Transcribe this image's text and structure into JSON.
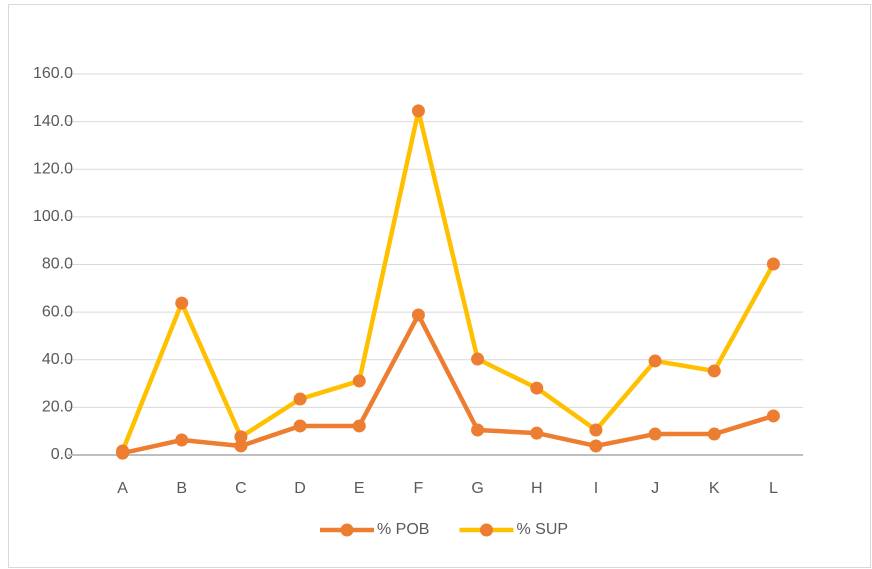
{
  "chart_data": {
    "type": "line",
    "categories": [
      "A",
      "B",
      "C",
      "D",
      "E",
      "F",
      "G",
      "H",
      "I",
      "J",
      "K",
      "L"
    ],
    "series": [
      {
        "name": "% POB",
        "color": "#ED7D31",
        "marker_color": "#ED7D31",
        "values": [
          0.8,
          6.3,
          3.8,
          12.2,
          12.2,
          58.8,
          10.5,
          9.2,
          3.8,
          8.8,
          8.8,
          16.4
        ]
      },
      {
        "name": "% SUP",
        "color": "#FFC000",
        "marker_color": "#ED7D31",
        "values": [
          1.7,
          63.8,
          7.6,
          23.5,
          31.1,
          144.5,
          40.3,
          28.1,
          10.5,
          39.5,
          35.3,
          80.2
        ]
      }
    ],
    "ylim": [
      0,
      160
    ],
    "yticks": [
      {
        "value": 0,
        "label": "0.0"
      },
      {
        "value": 20,
        "label": "20.0"
      },
      {
        "value": 40,
        "label": "40.0"
      },
      {
        "value": 60,
        "label": "60.0"
      },
      {
        "value": 80,
        "label": "80.0"
      },
      {
        "value": 100,
        "label": "100.0"
      },
      {
        "value": 120,
        "label": "120.0"
      },
      {
        "value": 140,
        "label": "140.0"
      },
      {
        "value": 160,
        "label": "160.0"
      }
    ],
    "grid": true,
    "legend": "bottom"
  }
}
